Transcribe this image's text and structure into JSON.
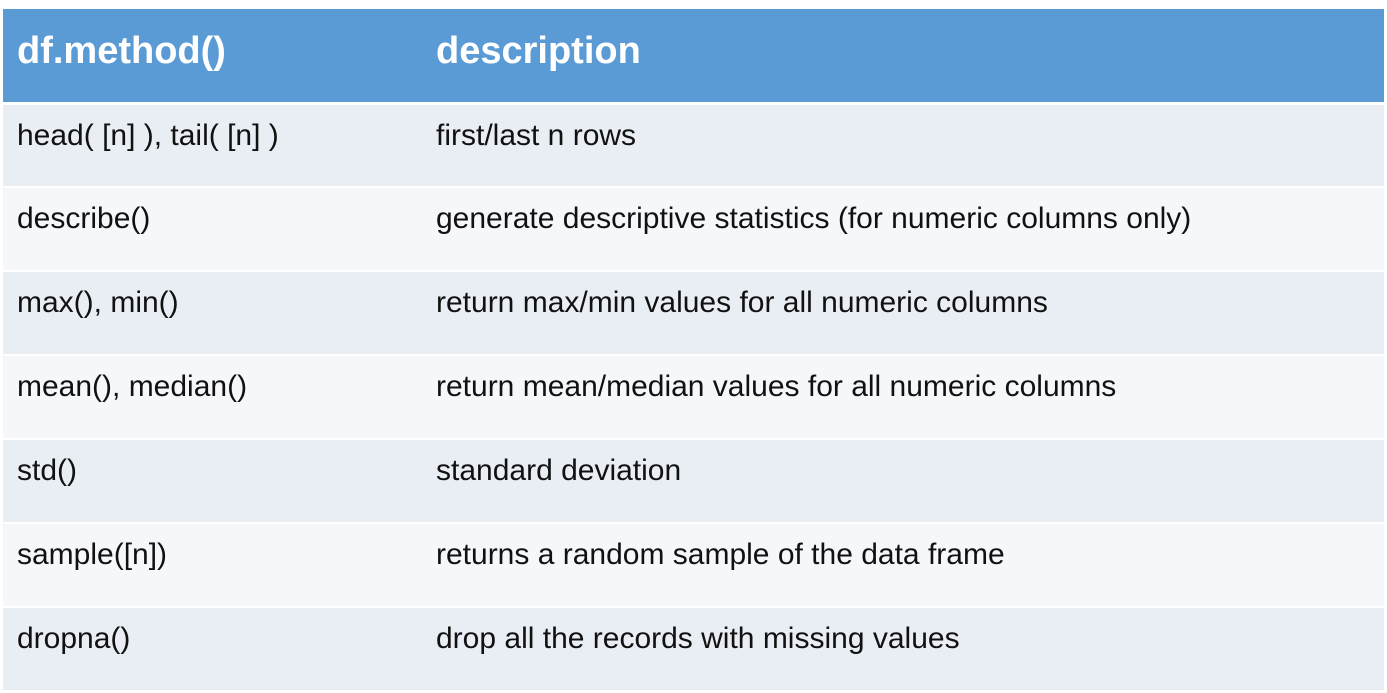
{
  "table": {
    "headers": [
      "df.method()",
      "description"
    ],
    "rows": [
      {
        "method": "head( [n] ), tail( [n] )",
        "description": "first/last n rows"
      },
      {
        "method": "describe()",
        "description": "generate descriptive statistics (for numeric columns only)"
      },
      {
        "method": "max(), min()",
        "description": "return max/min values for all numeric columns"
      },
      {
        "method": "mean(), median()",
        "description": "return mean/median values for all numeric columns"
      },
      {
        "method": "std()",
        "description": "standard deviation"
      },
      {
        "method": "sample([n])",
        "description": "returns a random sample of the data frame"
      },
      {
        "method": "dropna()",
        "description": "drop all the records with missing values"
      }
    ]
  },
  "colors": {
    "header_bg": "#5b9bd5",
    "header_text": "#ffffff",
    "row_odd_bg": "#e9edf4",
    "row_even_bg": "#f5f7fa",
    "cell_text": "#111111"
  }
}
